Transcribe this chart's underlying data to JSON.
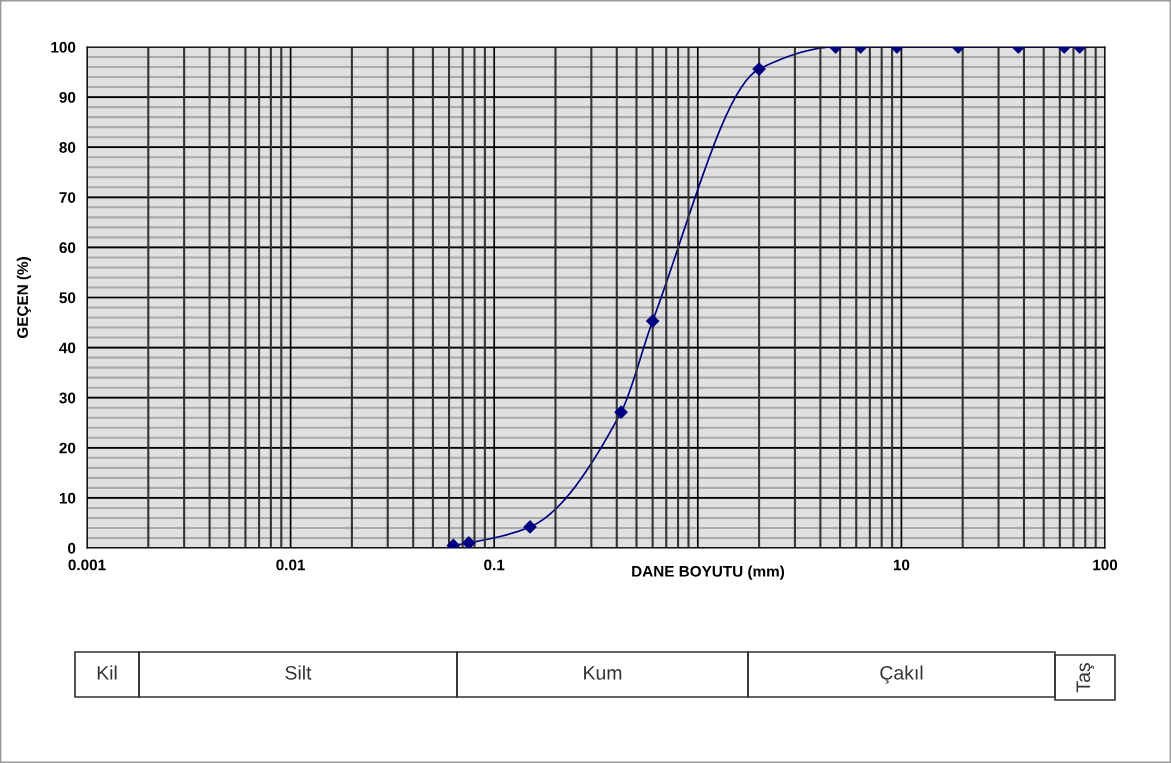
{
  "chart_data": {
    "type": "line",
    "xlabel": "DANE BOYUTU (mm)",
    "ylabel": "GEÇEN (%)",
    "x": [
      0.063,
      0.075,
      0.15,
      0.42,
      0.6,
      2,
      4.75,
      6.3,
      9.5,
      19,
      37.5,
      63,
      75
    ],
    "series": [
      {
        "color": "#000080",
        "values": [
          0.5,
          1,
          4.2,
          27.1,
          45.3,
          95.6,
          100,
          100,
          100,
          100,
          100,
          100,
          100
        ]
      }
    ],
    "log": "x",
    "xlim": [
      0.001,
      100
    ],
    "ylim": [
      0,
      100
    ],
    "xticks": [
      0.001,
      0.01,
      0.1,
      {
        "value": 1,
        "label": null
      },
      10,
      100
    ],
    "yticks": [
      0,
      10,
      20,
      30,
      40,
      50,
      60,
      70,
      80,
      90,
      100
    ],
    "grid": true,
    "marker": "diamond",
    "line_style": "solid",
    "annotations": [
      "Kil",
      "Silt",
      "Kum",
      "Çakıl",
      "Taş"
    ]
  }
}
